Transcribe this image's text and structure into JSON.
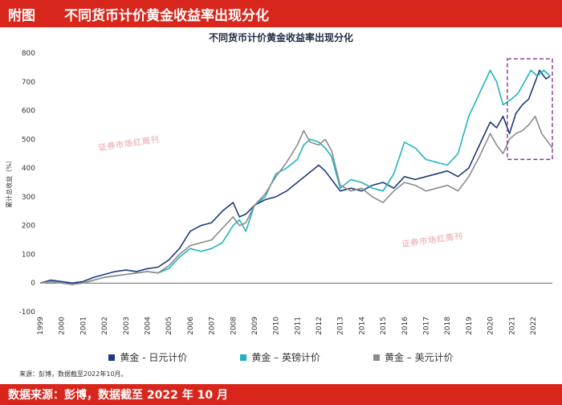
{
  "header": {
    "tag": "附图",
    "title": "不同货币计价黄金收益率出现分化"
  },
  "footer": {
    "text": "数据来源：彭博，数据截至 2022 年 10 月"
  },
  "source_note": "来源：彭博，数据截至2022年10月。",
  "watermark_text": "证券市场红周刊",
  "colors": {
    "jpy": "#1f3a7a",
    "gbp": "#1fb5bf",
    "usd": "#8c8c8c",
    "highlight": "#8b2f93",
    "brand_red": "#d9261c"
  },
  "chart_data": {
    "type": "line",
    "title": "不同货币计价黄金收益率出现分化",
    "ylabel": "累计总收益（%）",
    "xlabel": "",
    "ylim": [
      -100,
      800
    ],
    "yticks": [
      -100,
      0,
      100,
      200,
      300,
      400,
      500,
      600,
      700,
      800
    ],
    "xticks": [
      1999,
      2000,
      2001,
      2002,
      2003,
      2004,
      2005,
      2006,
      2007,
      2008,
      2009,
      2010,
      2011,
      2012,
      2013,
      2014,
      2015,
      2016,
      2017,
      2018,
      2019,
      2020,
      2021,
      2022
    ],
    "xlim": [
      1999,
      2022.9
    ],
    "grid": false,
    "legend_position": "bottom",
    "highlight_range": {
      "x": [
        2020.8,
        2022.9
      ],
      "y": [
        430,
        780
      ]
    },
    "series": [
      {
        "name": "黄金 - 日元计价",
        "color_key": "jpy",
        "points": [
          [
            1999,
            0
          ],
          [
            1999.5,
            10
          ],
          [
            2000,
            5
          ],
          [
            2000.5,
            0
          ],
          [
            2001,
            5
          ],
          [
            2001.5,
            20
          ],
          [
            2002,
            30
          ],
          [
            2002.5,
            40
          ],
          [
            2003,
            45
          ],
          [
            2003.5,
            40
          ],
          [
            2004,
            50
          ],
          [
            2004.5,
            55
          ],
          [
            2005,
            80
          ],
          [
            2005.5,
            120
          ],
          [
            2006,
            180
          ],
          [
            2006.5,
            200
          ],
          [
            2007,
            210
          ],
          [
            2007.5,
            250
          ],
          [
            2008,
            280
          ],
          [
            2008.3,
            230
          ],
          [
            2008.6,
            240
          ],
          [
            2009,
            270
          ],
          [
            2009.5,
            290
          ],
          [
            2010,
            300
          ],
          [
            2010.5,
            320
          ],
          [
            2011,
            350
          ],
          [
            2011.5,
            380
          ],
          [
            2012,
            410
          ],
          [
            2012.3,
            390
          ],
          [
            2012.6,
            360
          ],
          [
            2013,
            320
          ],
          [
            2013.5,
            330
          ],
          [
            2014,
            320
          ],
          [
            2014.5,
            340
          ],
          [
            2015,
            350
          ],
          [
            2015.5,
            330
          ],
          [
            2016,
            370
          ],
          [
            2016.5,
            360
          ],
          [
            2017,
            370
          ],
          [
            2017.5,
            380
          ],
          [
            2018,
            390
          ],
          [
            2018.5,
            370
          ],
          [
            2019,
            400
          ],
          [
            2019.5,
            480
          ],
          [
            2020,
            560
          ],
          [
            2020.3,
            540
          ],
          [
            2020.6,
            580
          ],
          [
            2020.9,
            520
          ],
          [
            2021.2,
            590
          ],
          [
            2021.5,
            620
          ],
          [
            2021.8,
            640
          ],
          [
            2022.1,
            700
          ],
          [
            2022.3,
            740
          ],
          [
            2022.6,
            710
          ],
          [
            2022.8,
            720
          ]
        ]
      },
      {
        "name": "黄金 – 英镑计价",
        "color_key": "gbp",
        "points": [
          [
            1999,
            0
          ],
          [
            1999.5,
            5
          ],
          [
            2000,
            0
          ],
          [
            2000.5,
            -5
          ],
          [
            2001,
            0
          ],
          [
            2001.5,
            10
          ],
          [
            2002,
            20
          ],
          [
            2002.5,
            25
          ],
          [
            2003,
            30
          ],
          [
            2003.5,
            35
          ],
          [
            2004,
            40
          ],
          [
            2004.5,
            35
          ],
          [
            2005,
            50
          ],
          [
            2005.5,
            90
          ],
          [
            2006,
            120
          ],
          [
            2006.5,
            110
          ],
          [
            2007,
            120
          ],
          [
            2007.5,
            140
          ],
          [
            2008,
            200
          ],
          [
            2008.3,
            220
          ],
          [
            2008.6,
            180
          ],
          [
            2009,
            270
          ],
          [
            2009.5,
            300
          ],
          [
            2010,
            380
          ],
          [
            2010.5,
            400
          ],
          [
            2011,
            430
          ],
          [
            2011.3,
            480
          ],
          [
            2011.6,
            500
          ],
          [
            2012,
            490
          ],
          [
            2012.3,
            470
          ],
          [
            2012.6,
            440
          ],
          [
            2013,
            330
          ],
          [
            2013.5,
            360
          ],
          [
            2014,
            350
          ],
          [
            2014.5,
            330
          ],
          [
            2015,
            320
          ],
          [
            2015.5,
            380
          ],
          [
            2016,
            490
          ],
          [
            2016.5,
            470
          ],
          [
            2017,
            430
          ],
          [
            2017.5,
            420
          ],
          [
            2018,
            410
          ],
          [
            2018.5,
            450
          ],
          [
            2019,
            580
          ],
          [
            2019.5,
            660
          ],
          [
            2020,
            740
          ],
          [
            2020.3,
            700
          ],
          [
            2020.6,
            620
          ],
          [
            2021,
            640
          ],
          [
            2021.3,
            660
          ],
          [
            2021.6,
            700
          ],
          [
            2021.9,
            740
          ],
          [
            2022.2,
            720
          ],
          [
            2022.5,
            740
          ],
          [
            2022.8,
            720
          ]
        ]
      },
      {
        "name": "黄金 – 美元计价",
        "color_key": "usd",
        "points": [
          [
            1999,
            0
          ],
          [
            1999.5,
            5
          ],
          [
            2000,
            0
          ],
          [
            2000.5,
            -5
          ],
          [
            2001,
            0
          ],
          [
            2001.5,
            10
          ],
          [
            2002,
            20
          ],
          [
            2002.5,
            25
          ],
          [
            2003,
            30
          ],
          [
            2003.5,
            35
          ],
          [
            2004,
            40
          ],
          [
            2004.5,
            35
          ],
          [
            2005,
            60
          ],
          [
            2005.5,
            100
          ],
          [
            2006,
            130
          ],
          [
            2006.5,
            140
          ],
          [
            2007,
            150
          ],
          [
            2007.5,
            190
          ],
          [
            2008,
            230
          ],
          [
            2008.3,
            200
          ],
          [
            2008.6,
            210
          ],
          [
            2009,
            270
          ],
          [
            2009.5,
            310
          ],
          [
            2010,
            370
          ],
          [
            2010.5,
            420
          ],
          [
            2011,
            480
          ],
          [
            2011.3,
            530
          ],
          [
            2011.6,
            490
          ],
          [
            2012,
            480
          ],
          [
            2012.3,
            500
          ],
          [
            2012.6,
            460
          ],
          [
            2013,
            340
          ],
          [
            2013.5,
            320
          ],
          [
            2014,
            330
          ],
          [
            2014.5,
            300
          ],
          [
            2015,
            280
          ],
          [
            2015.5,
            320
          ],
          [
            2016,
            350
          ],
          [
            2016.5,
            340
          ],
          [
            2017,
            320
          ],
          [
            2017.5,
            330
          ],
          [
            2018,
            340
          ],
          [
            2018.5,
            320
          ],
          [
            2019,
            370
          ],
          [
            2019.5,
            440
          ],
          [
            2020,
            520
          ],
          [
            2020.3,
            480
          ],
          [
            2020.6,
            450
          ],
          [
            2020.9,
            500
          ],
          [
            2021.2,
            520
          ],
          [
            2021.5,
            530
          ],
          [
            2021.8,
            550
          ],
          [
            2022.1,
            580
          ],
          [
            2022.4,
            520
          ],
          [
            2022.7,
            490
          ],
          [
            2022.9,
            470
          ]
        ]
      }
    ]
  }
}
